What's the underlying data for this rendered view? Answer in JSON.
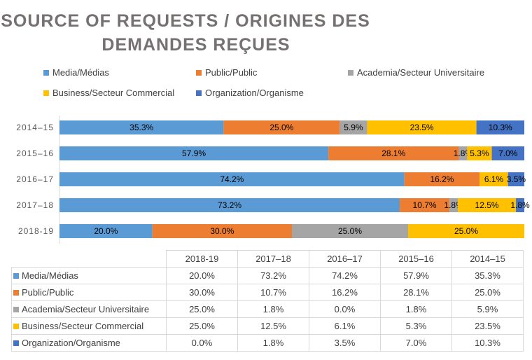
{
  "chart_data": {
    "type": "bar",
    "orientation": "horizontal",
    "stacked": "100%",
    "title": "SOURCE OF REQUESTS / ORIGINES DES DEMANDES REÇUES",
    "title_lines": [
      "SOURCE OF REQUESTS / ORIGINES DES",
      "DEMANDES REÇUES"
    ],
    "categories": [
      "2014–15",
      "2015–16",
      "2016–17",
      "2017–18",
      "2018-19"
    ],
    "series": [
      {
        "name": "Media/Médias",
        "color": "#5b9bd5",
        "values": [
          35.3,
          57.9,
          74.2,
          73.2,
          20.0
        ]
      },
      {
        "name": "Public/Public",
        "color": "#ed7d31",
        "values": [
          25.0,
          28.1,
          16.2,
          10.7,
          30.0
        ]
      },
      {
        "name": "Academia/Secteur Universitaire",
        "color": "#a5a5a5",
        "values": [
          5.9,
          1.8,
          0.0,
          1.8,
          25.0
        ]
      },
      {
        "name": "Business/Secteur Commercial",
        "color": "#ffc000",
        "values": [
          23.5,
          5.3,
          6.1,
          12.5,
          25.0
        ]
      },
      {
        "name": "Organization/Organisme",
        "color": "#4472c4",
        "values": [
          10.3,
          7.0,
          3.5,
          1.8,
          0.0
        ]
      }
    ],
    "legend_position": "top",
    "data_labels": true,
    "grid": false,
    "data_table": {
      "columns": [
        "2018-19",
        "2017–18",
        "2016–17",
        "2015–16",
        "2014–15"
      ],
      "rows": [
        {
          "label": "Media/Médias",
          "values": [
            "20.0%",
            "73.2%",
            "74.2%",
            "57.9%",
            "35.3%"
          ]
        },
        {
          "label": "Public/Public",
          "values": [
            "30.0%",
            "10.7%",
            "16.2%",
            "28.1%",
            "25.0%"
          ]
        },
        {
          "label": "Academia/Secteur Universitaire",
          "values": [
            "25.0%",
            "1.8%",
            "0.0%",
            "1.8%",
            "5.9%"
          ]
        },
        {
          "label": "Business/Secteur Commercial",
          "values": [
            "25.0%",
            "12.5%",
            "6.1%",
            "5.3%",
            "23.5%"
          ]
        },
        {
          "label": "Organization/Organisme",
          "values": [
            "0.0%",
            "1.8%",
            "3.5%",
            "7.0%",
            "10.3%"
          ]
        }
      ]
    }
  }
}
